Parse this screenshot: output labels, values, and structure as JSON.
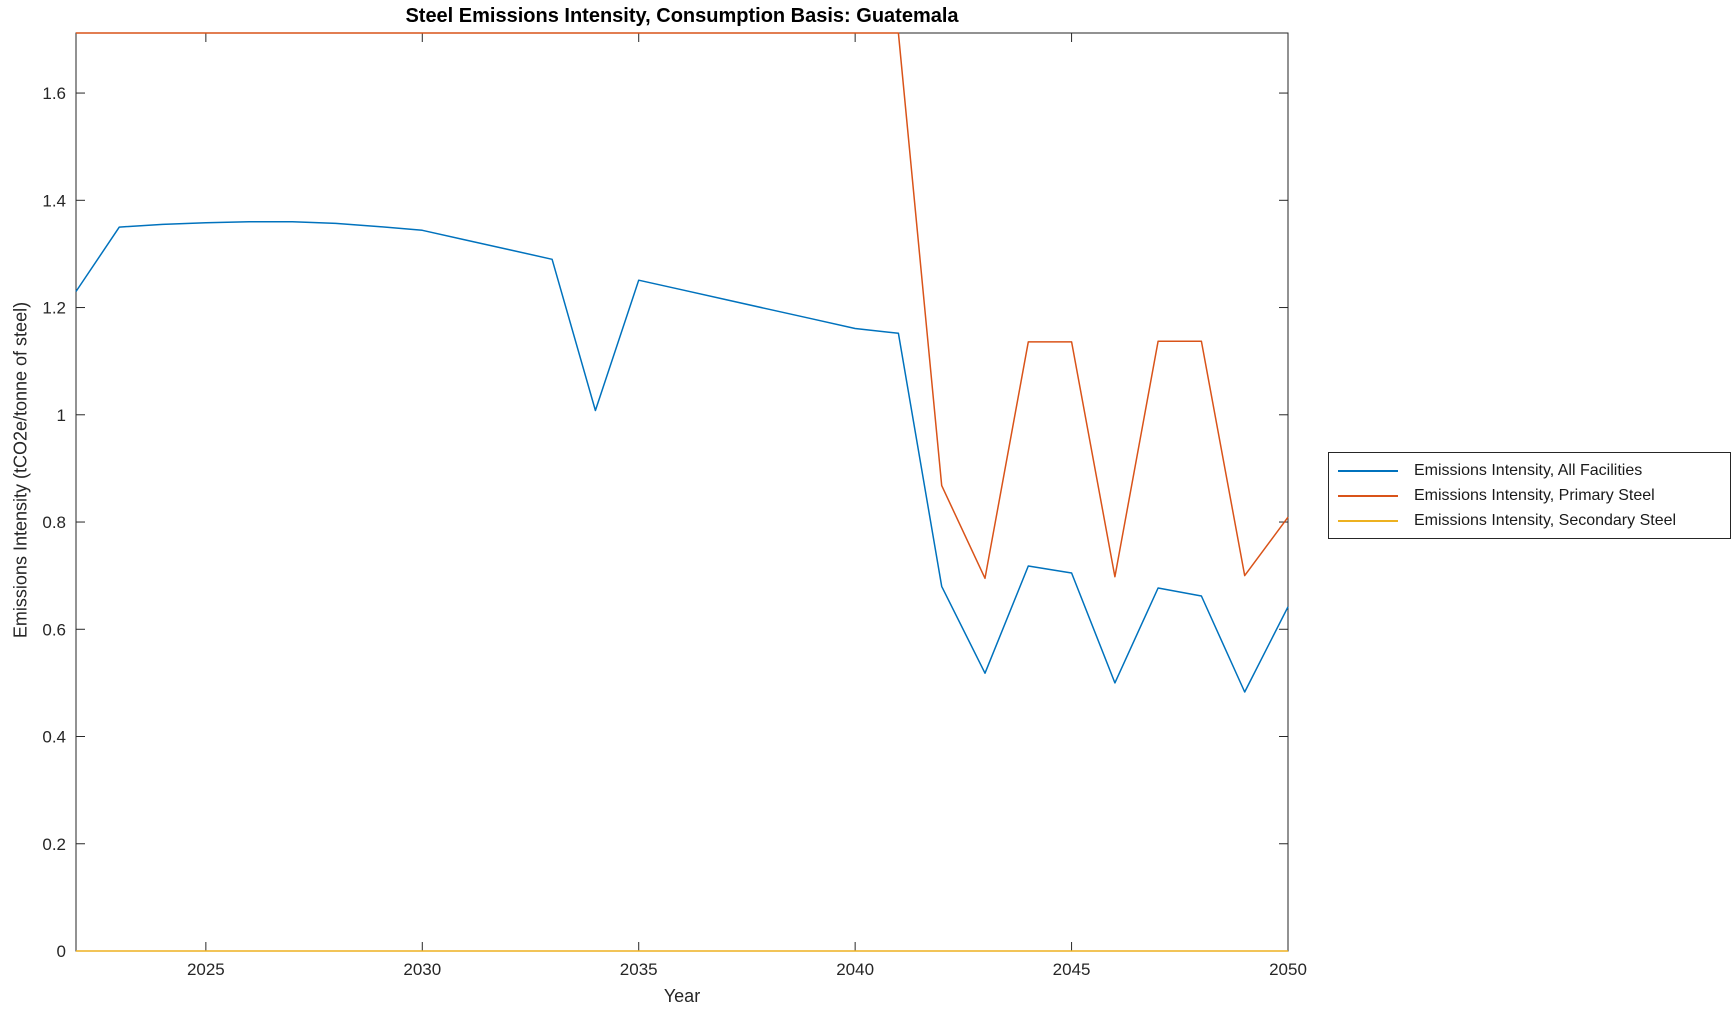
{
  "chart_data": {
    "type": "line",
    "title": "Steel Emissions Intensity, Consumption Basis: Guatemala",
    "xlabel": "Year",
    "ylabel": "Emissions Intensity (tCO2e/tonne of steel)",
    "xlim": [
      2022,
      2050
    ],
    "ylim": [
      0,
      1.712
    ],
    "xticks": [
      2025,
      2030,
      2035,
      2040,
      2045,
      2050
    ],
    "yticks": [
      0,
      0.2,
      0.4,
      0.6,
      0.8,
      1,
      1.2,
      1.4,
      1.6
    ],
    "ytick_labels": [
      "0",
      "0.2",
      "0.4",
      "0.6",
      "0.8",
      "1",
      "1.2",
      "1.4",
      "1.6"
    ],
    "grid": false,
    "legend_position": "outside-right",
    "clipping_note": "Primary Steel series runs along the top axis boundary (clipped at y-axis max 1.712) from 2022 through 2041",
    "x": [
      2022,
      2023,
      2024,
      2025,
      2026,
      2027,
      2028,
      2029,
      2030,
      2031,
      2032,
      2033,
      2034,
      2035,
      2036,
      2037,
      2038,
      2039,
      2040,
      2041,
      2042,
      2043,
      2044,
      2045,
      2046,
      2047,
      2048,
      2049,
      2050
    ],
    "series": [
      {
        "name": "Emissions Intensity, All Facilities",
        "color": "#0072BD",
        "values": [
          1.23,
          1.35,
          1.355,
          1.358,
          1.36,
          1.36,
          1.357,
          1.351,
          1.344,
          1.326,
          1.308,
          1.29,
          1.008,
          1.251,
          1.233,
          1.215,
          1.197,
          1.179,
          1.161,
          1.152,
          0.68,
          0.518,
          0.718,
          0.705,
          0.5,
          0.677,
          0.662,
          0.483,
          0.642
        ]
      },
      {
        "name": "Emissions Intensity, Primary Steel",
        "color": "#D95319",
        "values": [
          1.712,
          1.712,
          1.712,
          1.712,
          1.712,
          1.712,
          1.712,
          1.712,
          1.712,
          1.712,
          1.712,
          1.712,
          1.712,
          1.712,
          1.712,
          1.712,
          1.712,
          1.712,
          1.712,
          1.712,
          0.868,
          0.695,
          1.136,
          1.136,
          0.698,
          1.137,
          1.137,
          0.7,
          0.809
        ]
      },
      {
        "name": "Emissions Intensity, Secondary Steel",
        "color": "#EDB120",
        "values": [
          0,
          0,
          0,
          0,
          0,
          0,
          0,
          0,
          0,
          0,
          0,
          0,
          0,
          0,
          0,
          0,
          0,
          0,
          0,
          0,
          0,
          0,
          0,
          0,
          0,
          0,
          0,
          0,
          0
        ]
      }
    ]
  }
}
